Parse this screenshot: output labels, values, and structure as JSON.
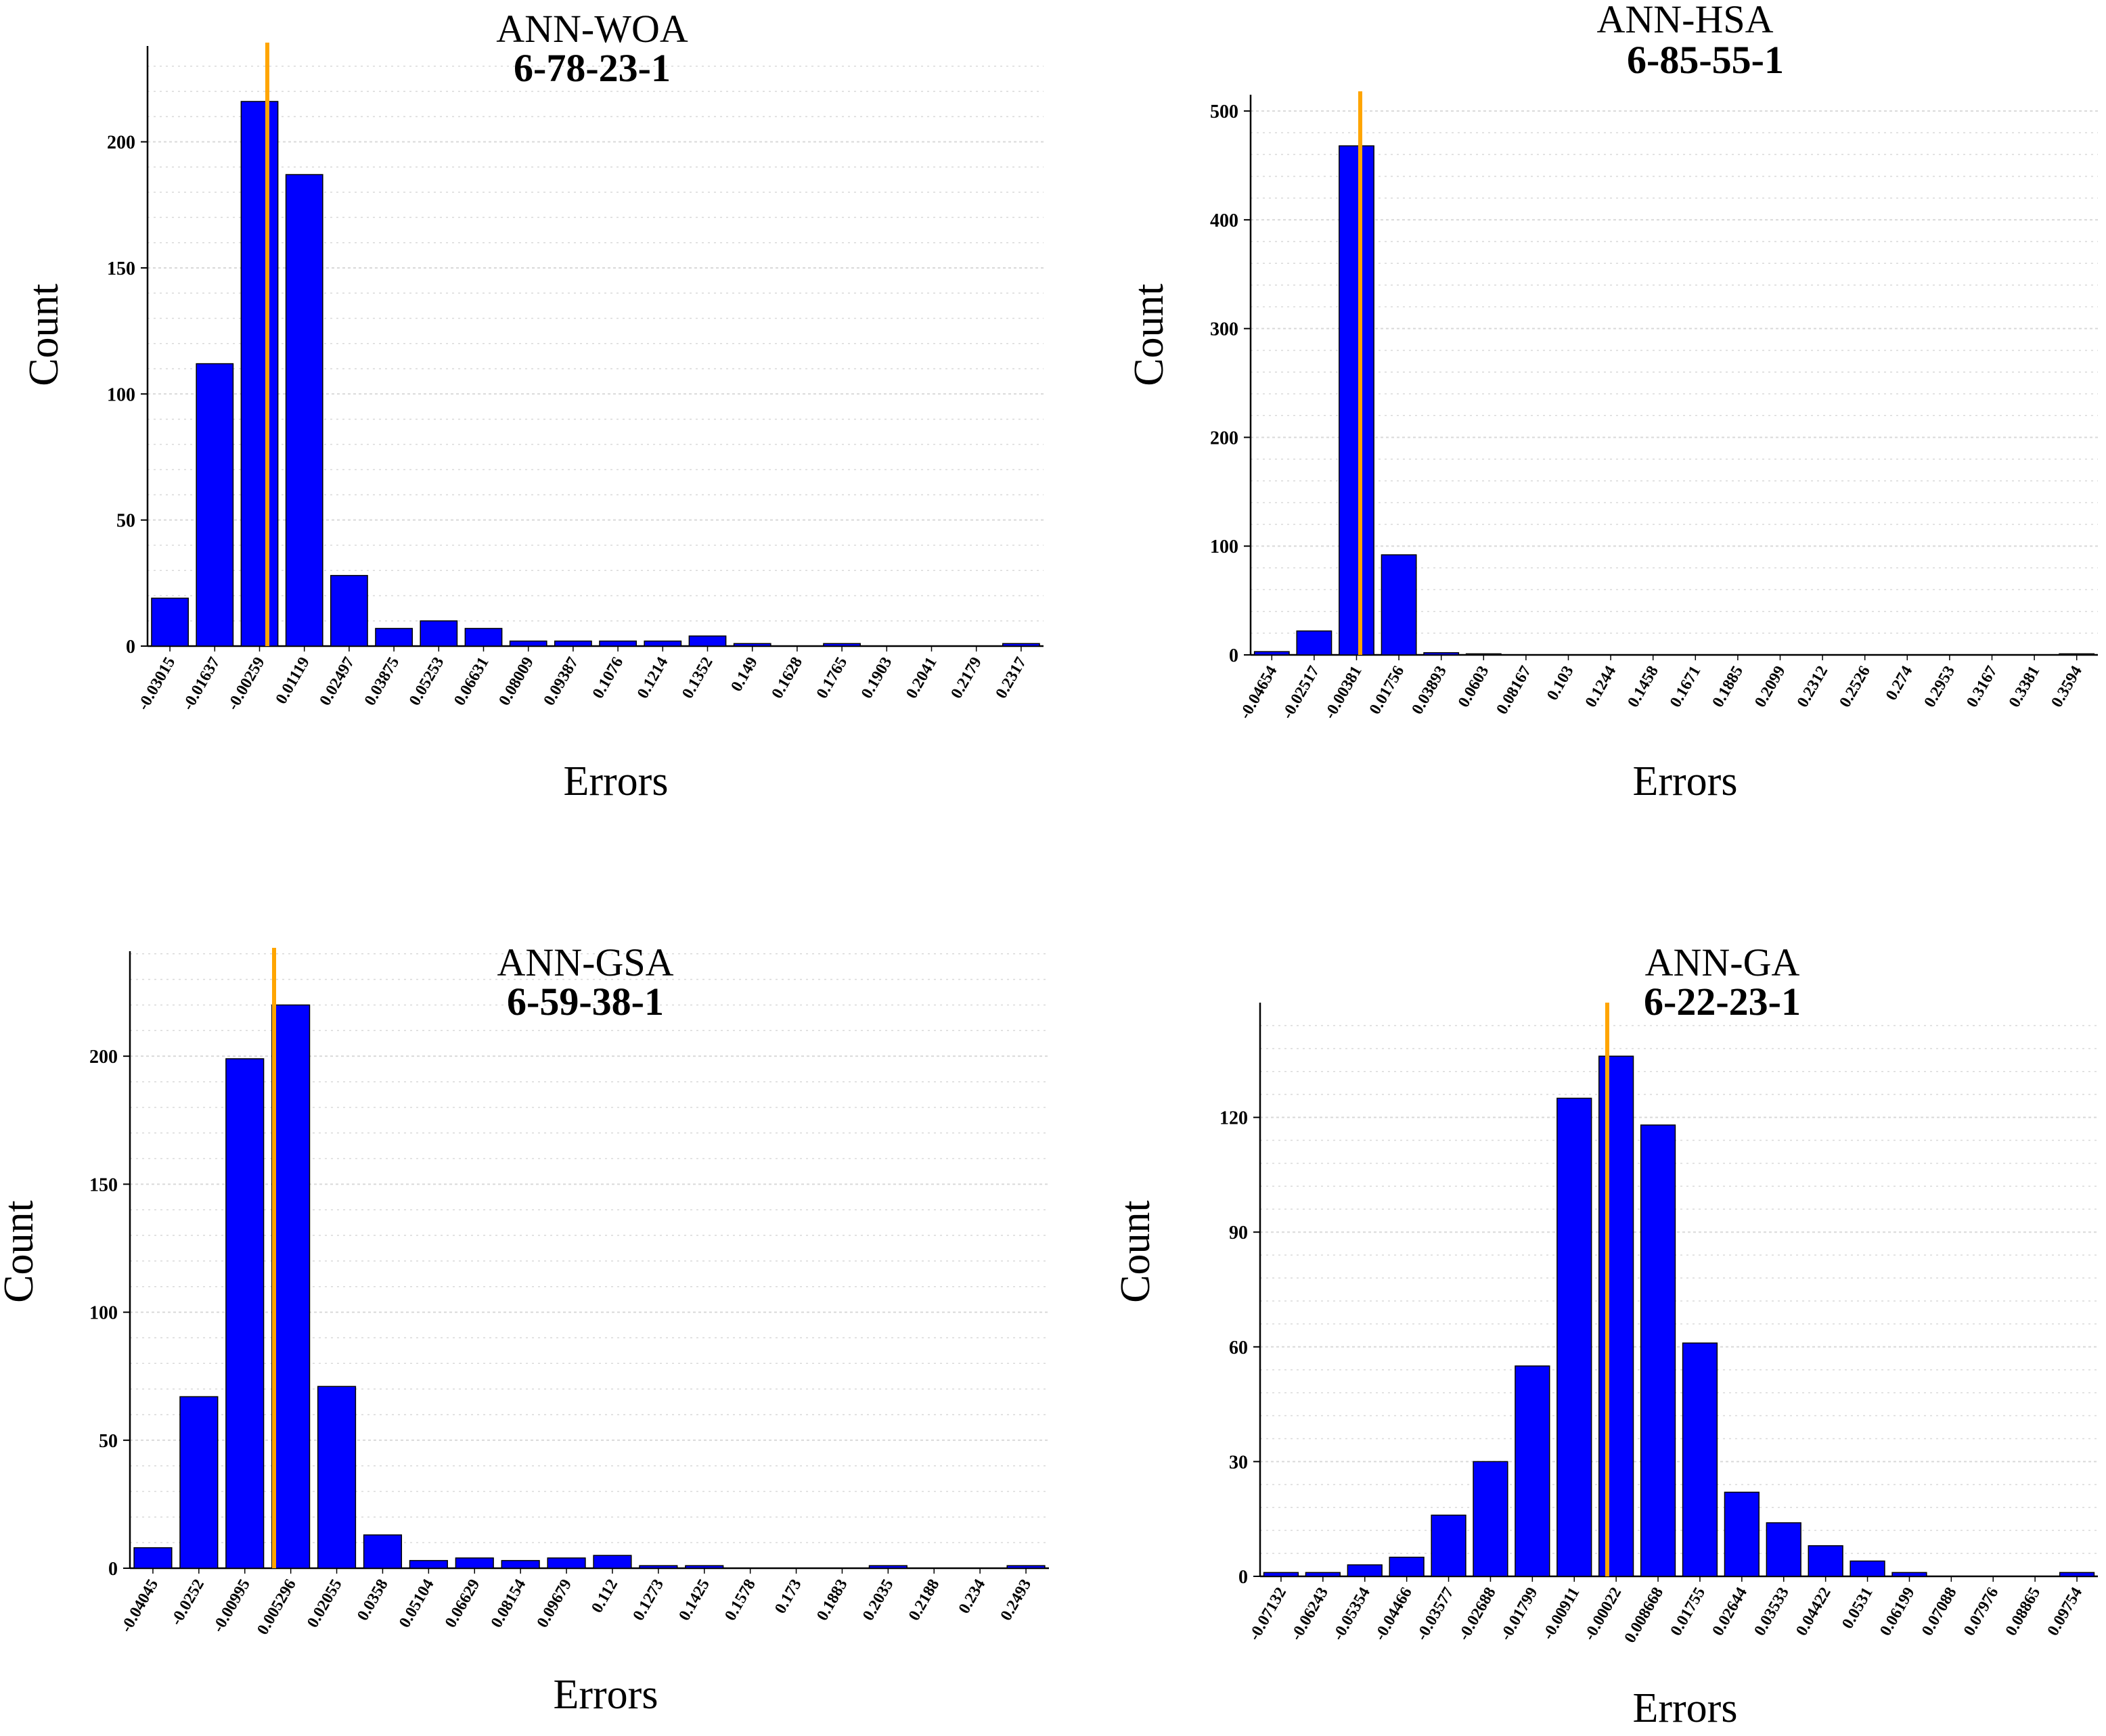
{
  "colors": {
    "bar": "#0000ff",
    "bar_stroke": "#000000",
    "zero_line": "#ffa500",
    "grid": "#d9d9d9"
  },
  "chart_data": [
    {
      "type": "bar",
      "title": "ANN-WOA",
      "subtitle": "6-78-23-1",
      "xlabel": "Errors",
      "ylabel": "Count",
      "ylim": [
        0,
        238
      ],
      "yticks": [
        0,
        50,
        100,
        150,
        200
      ],
      "grid": true,
      "zero_line_x": 0,
      "categories": [
        "-0.03015",
        "-0.01637",
        "-0.00259",
        "0.01119",
        "0.02497",
        "0.03875",
        "0.05253",
        "0.06631",
        "0.08009",
        "0.09387",
        "0.1076",
        "0.1214",
        "0.1352",
        "0.149",
        "0.1628",
        "0.1765",
        "0.1903",
        "0.2041",
        "0.2179",
        "0.2317"
      ],
      "values": [
        19,
        112,
        216,
        187,
        28,
        7,
        10,
        7,
        2,
        2,
        2,
        2,
        4,
        1,
        0,
        1,
        0,
        0,
        0,
        1
      ]
    },
    {
      "type": "bar",
      "title": "ANN-HSA",
      "subtitle": "6-85-55-1",
      "xlabel": "Errors",
      "ylabel": "Count",
      "ylim": [
        0,
        515
      ],
      "yticks": [
        0,
        100,
        200,
        300,
        400,
        500
      ],
      "grid": true,
      "zero_line_x": 0,
      "categories": [
        "-0.04654",
        "-0.02517",
        "-0.00381",
        "0.01756",
        "0.03893",
        "0.0603",
        "0.08167",
        "0.103",
        "0.1244",
        "0.1458",
        "0.1671",
        "0.1885",
        "0.2099",
        "0.2312",
        "0.2526",
        "0.274",
        "0.2953",
        "0.3167",
        "0.3381",
        "0.3594"
      ],
      "values": [
        3,
        22,
        468,
        92,
        2,
        1,
        0,
        0,
        0,
        0,
        0,
        0,
        0,
        0,
        0,
        0,
        0,
        0,
        0,
        1
      ]
    },
    {
      "type": "bar",
      "title": "ANN-GSA",
      "subtitle": "6-59-38-1",
      "xlabel": "Errors",
      "ylabel": "Count",
      "ylim": [
        0,
        241
      ],
      "yticks": [
        0,
        50,
        100,
        150,
        200
      ],
      "grid": true,
      "zero_line_x": 0,
      "categories": [
        "-0.04045",
        "-0.0252",
        "-0.00995",
        "0.005296",
        "0.02055",
        "0.0358",
        "0.05104",
        "0.06629",
        "0.08154",
        "0.09679",
        "0.112",
        "0.1273",
        "0.1425",
        "0.1578",
        "0.173",
        "0.1883",
        "0.2035",
        "0.2188",
        "0.234",
        "0.2493"
      ],
      "values": [
        8,
        67,
        199,
        220,
        71,
        13,
        3,
        4,
        3,
        4,
        5,
        1,
        1,
        0,
        0,
        0,
        1,
        0,
        0,
        1
      ]
    },
    {
      "type": "bar",
      "title": "ANN-GA",
      "subtitle": "6-22-23-1",
      "xlabel": "Errors",
      "ylabel": "Count",
      "ylim": [
        0,
        150
      ],
      "yticks": [
        0,
        30,
        60,
        90,
        120
      ],
      "grid": true,
      "zero_line_x": 0,
      "categories": [
        "-0.07132",
        "-0.06243",
        "-0.05354",
        "-0.04466",
        "-0.03577",
        "-0.02688",
        "-0.01799",
        "-0.00911",
        "-0.00022",
        "0.008668",
        "0.01755",
        "0.02644",
        "0.03533",
        "0.04422",
        "0.0531",
        "0.06199",
        "0.07088",
        "0.07976",
        "0.08865",
        "0.09754"
      ],
      "values": [
        1,
        1,
        3,
        5,
        16,
        30,
        55,
        125,
        136,
        118,
        61,
        22,
        14,
        8,
        4,
        1,
        0,
        0,
        0,
        1
      ]
    }
  ]
}
